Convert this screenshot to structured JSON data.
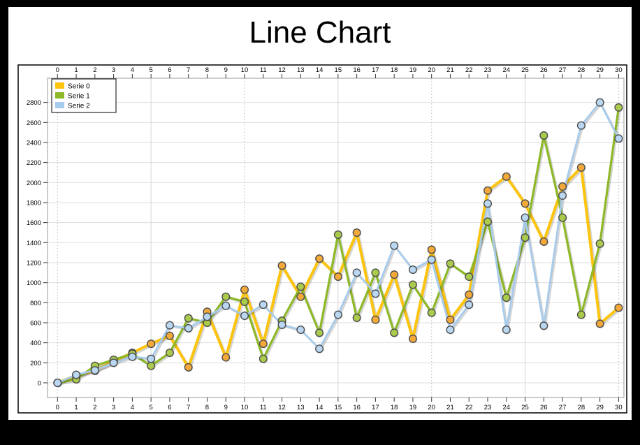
{
  "page": {
    "background": "#000000",
    "title": "Line Chart"
  },
  "chart_data": {
    "type": "line",
    "title": "Line Chart",
    "x": [
      0,
      1,
      2,
      3,
      4,
      5,
      6,
      7,
      8,
      9,
      10,
      11,
      12,
      13,
      14,
      15,
      16,
      17,
      18,
      19,
      20,
      21,
      22,
      23,
      24,
      25,
      26,
      27,
      28,
      29,
      30
    ],
    "y_ticks": [
      0,
      200,
      400,
      600,
      800,
      1000,
      1200,
      1400,
      1600,
      1800,
      2000,
      2200,
      2400,
      2600,
      2800
    ],
    "ylim": [
      0,
      2800
    ],
    "xlabel": "",
    "ylabel": "",
    "grid": {
      "h_step": 200,
      "v_solid": [
        5,
        15,
        25
      ],
      "v_dotted": [
        0,
        10,
        20,
        30
      ]
    },
    "legend": {
      "position": "top-left",
      "items": [
        "Serie 0",
        "Serie 1",
        "Serie 2"
      ]
    },
    "marker_outline": "#4d4d4d",
    "series": [
      {
        "name": "Serie 0",
        "line_color": "#fcc40f",
        "marker_color": "#f3a83a",
        "values": [
          0,
          75,
          120,
          215,
          300,
          390,
          470,
          155,
          710,
          255,
          930,
          390,
          1170,
          860,
          1240,
          1060,
          1500,
          630,
          1080,
          440,
          1330,
          630,
          880,
          1920,
          2060,
          1790,
          1410,
          1960,
          2150,
          590,
          750
        ]
      },
      {
        "name": "Serie 1",
        "line_color": "#8db827",
        "marker_color": "#abcb4d",
        "values": [
          0,
          35,
          170,
          230,
          290,
          170,
          300,
          645,
          600,
          860,
          810,
          240,
          620,
          960,
          500,
          1480,
          650,
          1100,
          500,
          980,
          700,
          1190,
          1060,
          1610,
          850,
          1450,
          2470,
          1650,
          680,
          1390,
          2750
        ]
      },
      {
        "name": "Serie 2",
        "line_color": "#a7cbec",
        "marker_color": "#bad7f2",
        "values": [
          0,
          80,
          125,
          200,
          260,
          240,
          575,
          545,
          660,
          770,
          670,
          780,
          580,
          530,
          340,
          680,
          1100,
          890,
          1370,
          1130,
          1230,
          530,
          780,
          1790,
          530,
          1650,
          570,
          1870,
          2570,
          2800,
          2440
        ]
      }
    ]
  }
}
